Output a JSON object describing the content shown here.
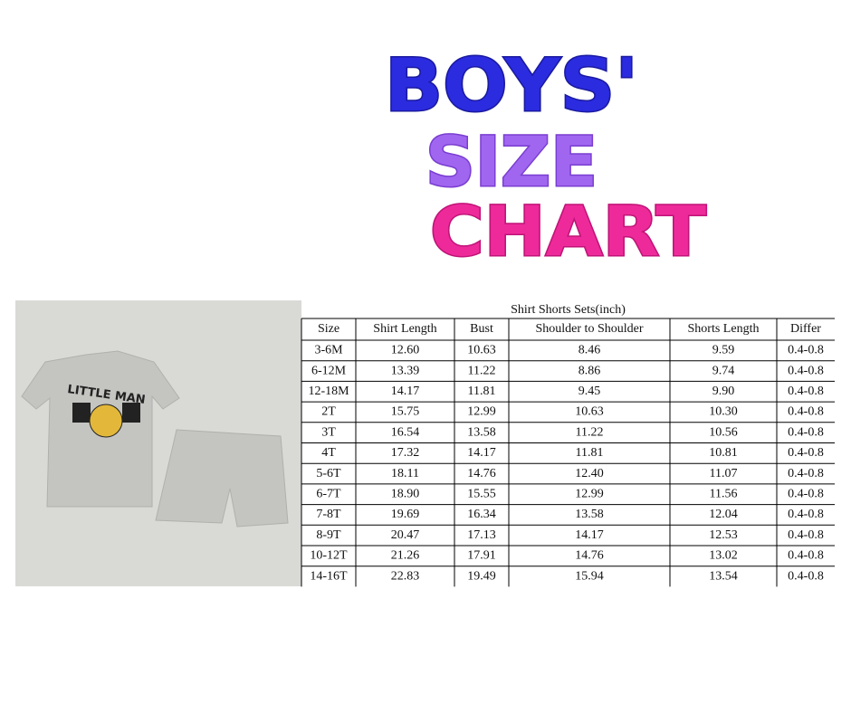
{
  "header": {
    "lines": [
      "BOYS'",
      "SIZE",
      "CHART"
    ]
  },
  "product": {
    "graphic_text": "LITTLE MAN"
  },
  "table": {
    "caption": "Shirt Shorts Sets(inch)",
    "columns": [
      "Size",
      "Shirt Length",
      "Bust",
      "Shoulder to Shoulder",
      "Shorts Length",
      "Differ"
    ],
    "rows": [
      [
        "3-6M",
        "12.60",
        "10.63",
        "8.46",
        "9.59",
        "0.4-0.8"
      ],
      [
        "6-12M",
        "13.39",
        "11.22",
        "8.86",
        "9.74",
        "0.4-0.8"
      ],
      [
        "12-18M",
        "14.17",
        "11.81",
        "9.45",
        "9.90",
        "0.4-0.8"
      ],
      [
        "2T",
        "15.75",
        "12.99",
        "10.63",
        "10.30",
        "0.4-0.8"
      ],
      [
        "3T",
        "16.54",
        "13.58",
        "11.22",
        "10.56",
        "0.4-0.8"
      ],
      [
        "4T",
        "17.32",
        "14.17",
        "11.81",
        "10.81",
        "0.4-0.8"
      ],
      [
        "5-6T",
        "18.11",
        "14.76",
        "12.40",
        "11.07",
        "0.4-0.8"
      ],
      [
        "6-7T",
        "18.90",
        "15.55",
        "12.99",
        "11.56",
        "0.4-0.8"
      ],
      [
        "7-8T",
        "19.69",
        "16.34",
        "13.58",
        "12.04",
        "0.4-0.8"
      ],
      [
        "8-9T",
        "20.47",
        "17.13",
        "14.17",
        "12.53",
        "0.4-0.8"
      ],
      [
        "10-12T",
        "21.26",
        "17.91",
        "14.76",
        "13.02",
        "0.4-0.8"
      ],
      [
        "14-16T",
        "22.83",
        "19.49",
        "15.94",
        "13.54",
        "0.4-0.8"
      ]
    ]
  }
}
